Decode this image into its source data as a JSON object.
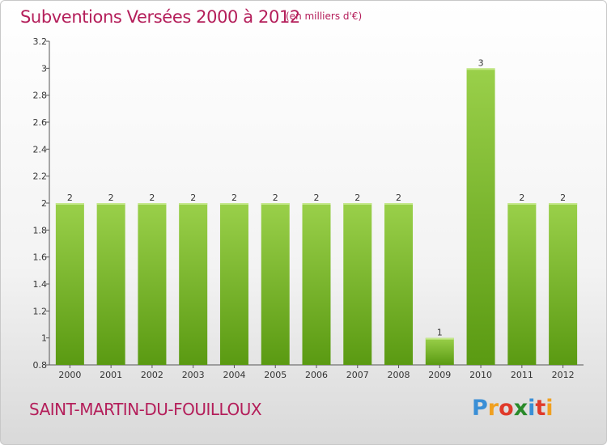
{
  "header": {
    "title": "Subventions Versées 2000 à 2012",
    "unit": "(en milliers d'€)"
  },
  "footer": {
    "commune": "SAINT-MARTIN-DU-FOUILLOUX",
    "logo_letters": [
      "P",
      "r",
      "o",
      "x",
      "i",
      "t",
      "i"
    ],
    "logo_colors": [
      "#3a8fd6",
      "#f0a020",
      "#e03a2a",
      "#2a8a2a",
      "#3a8fd6",
      "#e03a2a",
      "#f0a020"
    ]
  },
  "colors": {
    "bar_top": "#9ad04a",
    "bar_bottom": "#5a9a12",
    "accent": "#b41e5a"
  },
  "chart_data": {
    "type": "bar",
    "title": "Subventions Versées 2000 à 2012",
    "xlabel": "",
    "ylabel": "",
    "categories": [
      "2000",
      "2001",
      "2002",
      "2003",
      "2004",
      "2005",
      "2006",
      "2007",
      "2008",
      "2009",
      "2010",
      "2011",
      "2012"
    ],
    "values": [
      2,
      2,
      2,
      2,
      2,
      2,
      2,
      2,
      2,
      1,
      3,
      2,
      2
    ],
    "data_labels": [
      "2",
      "2",
      "2",
      "2",
      "2",
      "2",
      "2",
      "2",
      "2",
      "1",
      "3",
      "2",
      "2"
    ],
    "ylim": [
      0.8,
      3.2
    ],
    "yticks": [
      0.8,
      1,
      1.2,
      1.4,
      1.6,
      1.8,
      2,
      2.2,
      2.4,
      2.6,
      2.8,
      3,
      3.2
    ],
    "ytick_labels": [
      "0.8",
      "1",
      "1.2",
      "1.4",
      "1.6",
      "1.8",
      "2",
      "2.2",
      "2.4",
      "2.6",
      "2.8",
      "3",
      "3.2"
    ],
    "grid": false,
    "legend": "none"
  }
}
